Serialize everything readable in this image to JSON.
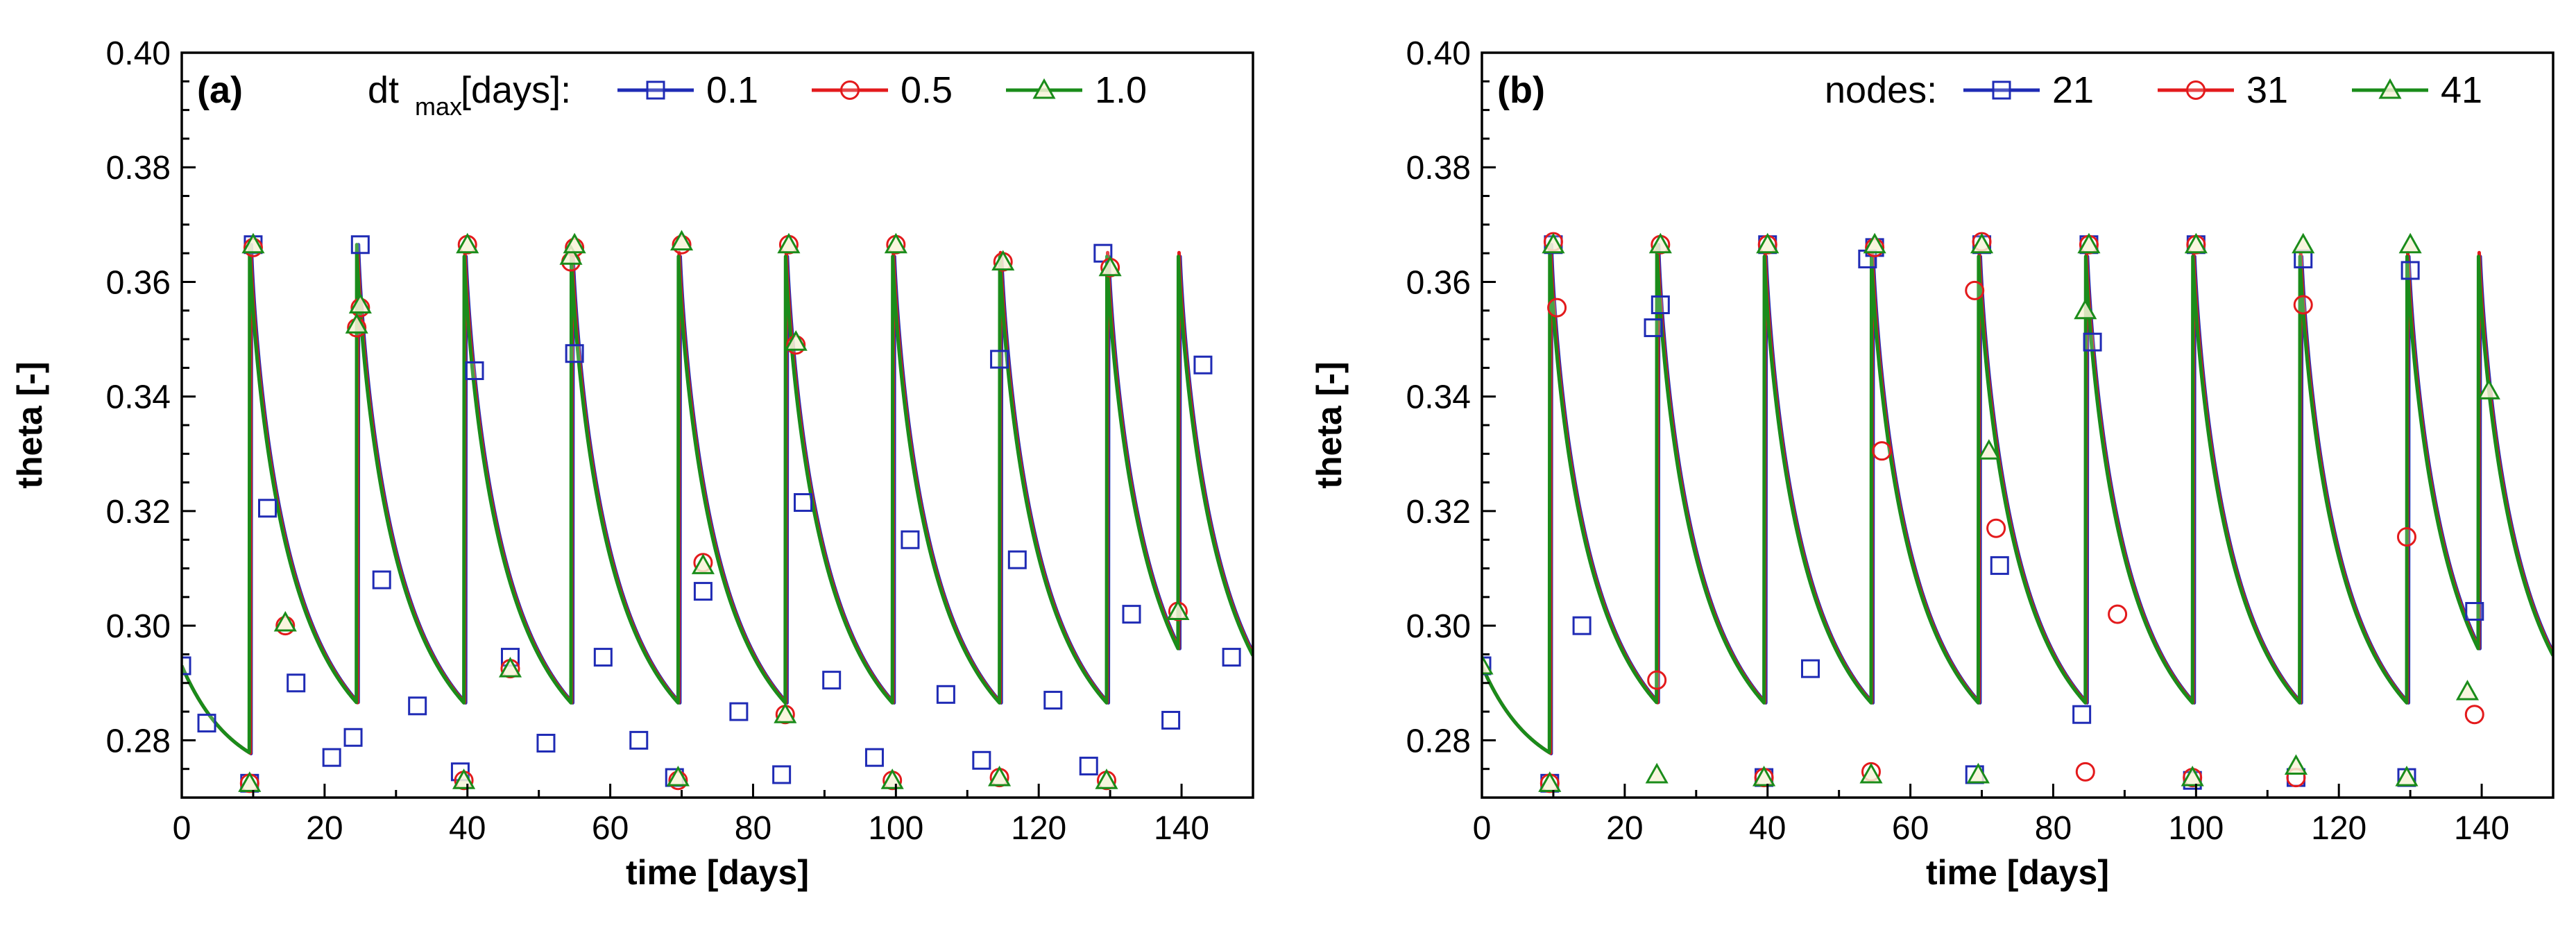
{
  "chart_data": [
    {
      "type": "line",
      "panel_label": "(a)",
      "xlabel": "time [days]",
      "ylabel": "theta [-]",
      "xlim": [
        0,
        150
      ],
      "ylim": [
        0.27,
        0.4
      ],
      "xticks": [
        0,
        20,
        40,
        60,
        80,
        100,
        120,
        140
      ],
      "yticks": [
        0.28,
        0.3,
        0.32,
        0.34,
        0.36,
        0.38,
        0.4
      ],
      "grid": false,
      "legend_placement": "top-right",
      "legend_title_main": "dt",
      "legend_title_sub": "max",
      "legend_title_suffix": " [days]:",
      "recharge_days": [
        9.5,
        24.5,
        39.5,
        54.5,
        69.5,
        84.5,
        99.5,
        114.5,
        129.5,
        139.5
      ],
      "series": [
        {
          "name": "0.1",
          "color": "#1f2bb5",
          "marker": "square",
          "points": [
            [
              0,
              0.293
            ],
            [
              3.5,
              0.283
            ],
            [
              9.5,
              0.2725
            ],
            [
              10,
              0.3665
            ],
            [
              12,
              0.3205
            ],
            [
              16,
              0.29
            ],
            [
              21,
              0.277
            ],
            [
              24,
              0.2805
            ],
            [
              25,
              0.3665
            ],
            [
              28,
              0.308
            ],
            [
              33,
              0.286
            ],
            [
              39,
              0.2745
            ],
            [
              41,
              0.3445
            ],
            [
              46,
              0.2945
            ],
            [
              51,
              0.2795
            ],
            [
              55,
              0.3475
            ],
            [
              59,
              0.2945
            ],
            [
              64,
              0.28
            ],
            [
              69,
              0.2735
            ],
            [
              73,
              0.306
            ],
            [
              78,
              0.285
            ],
            [
              84,
              0.274
            ],
            [
              87,
              0.3215
            ],
            [
              91,
              0.2905
            ],
            [
              97,
              0.277
            ],
            [
              102,
              0.315
            ],
            [
              107,
              0.288
            ],
            [
              112,
              0.2765
            ],
            [
              114.5,
              0.3465
            ],
            [
              117,
              0.3115
            ],
            [
              122,
              0.287
            ],
            [
              127,
              0.2755
            ],
            [
              129,
              0.365
            ],
            [
              133,
              0.302
            ],
            [
              138.5,
              0.2835
            ],
            [
              143,
              0.3455
            ],
            [
              147,
              0.2945
            ]
          ]
        },
        {
          "name": "0.5",
          "color": "#e31a1c",
          "marker": "circle",
          "points": [
            [
              9.5,
              0.2725
            ],
            [
              10,
              0.366
            ],
            [
              14.5,
              0.3
            ],
            [
              24.5,
              0.352
            ],
            [
              25,
              0.3555
            ],
            [
              39.5,
              0.273
            ],
            [
              40,
              0.3665
            ],
            [
              46,
              0.2925
            ],
            [
              54.5,
              0.3635
            ],
            [
              55,
              0.366
            ],
            [
              69.5,
              0.273
            ],
            [
              70,
              0.3665
            ],
            [
              73,
              0.311
            ],
            [
              84.5,
              0.2845
            ],
            [
              85,
              0.3665
            ],
            [
              86,
              0.349
            ],
            [
              99.5,
              0.273
            ],
            [
              100,
              0.3665
            ],
            [
              114.5,
              0.2735
            ],
            [
              115,
              0.3635
            ],
            [
              129.5,
              0.273
            ],
            [
              130,
              0.3625
            ],
            [
              139.5,
              0.3025
            ]
          ]
        },
        {
          "name": "1.0",
          "color": "#1a8c1a",
          "marker": "triangle",
          "points": [
            [
              9.5,
              0.2725
            ],
            [
              10,
              0.3665
            ],
            [
              14.5,
              0.3005
            ],
            [
              24.5,
              0.3525
            ],
            [
              25,
              0.356
            ],
            [
              39.5,
              0.273
            ],
            [
              40,
              0.3665
            ],
            [
              46,
              0.2925
            ],
            [
              54.5,
              0.3645
            ],
            [
              55,
              0.3665
            ],
            [
              69.5,
              0.2735
            ],
            [
              70,
              0.367
            ],
            [
              73,
              0.3105
            ],
            [
              84.5,
              0.2845
            ],
            [
              85,
              0.3665
            ],
            [
              86,
              0.3495
            ],
            [
              99.5,
              0.273
            ],
            [
              100,
              0.3665
            ],
            [
              114.5,
              0.2735
            ],
            [
              115,
              0.3635
            ],
            [
              129.5,
              0.273
            ],
            [
              130,
              0.3625
            ],
            [
              139.5,
              0.3025
            ]
          ]
        }
      ]
    },
    {
      "type": "line",
      "panel_label": "(b)",
      "xlabel": "time [days]",
      "ylabel": "theta [-]",
      "xlim": [
        0,
        150
      ],
      "ylim": [
        0.27,
        0.4
      ],
      "xticks": [
        0,
        20,
        40,
        60,
        80,
        100,
        120,
        140
      ],
      "yticks": [
        0.28,
        0.3,
        0.32,
        0.34,
        0.36,
        0.38,
        0.4
      ],
      "grid": false,
      "legend_placement": "top-right",
      "legend_title_main": "nodes:",
      "recharge_days": [
        9.5,
        24.5,
        39.5,
        54.5,
        69.5,
        84.5,
        99.5,
        114.5,
        129.5,
        139.5
      ],
      "series": [
        {
          "name": "21",
          "color": "#1f2bb5",
          "marker": "square",
          "points": [
            [
              0,
              0.293
            ],
            [
              9.5,
              0.2725
            ],
            [
              10,
              0.3665
            ],
            [
              14,
              0.3
            ],
            [
              24,
              0.352
            ],
            [
              25,
              0.356
            ],
            [
              39.5,
              0.2735
            ],
            [
              40,
              0.3665
            ],
            [
              46,
              0.2925
            ],
            [
              54,
              0.364
            ],
            [
              55,
              0.366
            ],
            [
              69,
              0.274
            ],
            [
              70,
              0.3665
            ],
            [
              72.5,
              0.3105
            ],
            [
              84,
              0.2845
            ],
            [
              85,
              0.3665
            ],
            [
              85.5,
              0.3495
            ],
            [
              99.5,
              0.273
            ],
            [
              100,
              0.3665
            ],
            [
              114,
              0.2735
            ],
            [
              115,
              0.364
            ],
            [
              129.5,
              0.2735
            ],
            [
              130,
              0.362
            ],
            [
              139,
              0.3025
            ]
          ]
        },
        {
          "name": "31",
          "color": "#e31a1c",
          "marker": "circle",
          "points": [
            [
              9.5,
              0.2725
            ],
            [
              10,
              0.367
            ],
            [
              10.5,
              0.3555
            ],
            [
              24.5,
              0.2905
            ],
            [
              25,
              0.3665
            ],
            [
              39.5,
              0.2735
            ],
            [
              40,
              0.3665
            ],
            [
              54.5,
              0.2745
            ],
            [
              55,
              0.366
            ],
            [
              56,
              0.3305
            ],
            [
              69,
              0.3585
            ],
            [
              70,
              0.367
            ],
            [
              72,
              0.317
            ],
            [
              84.5,
              0.2745
            ],
            [
              85,
              0.3665
            ],
            [
              89,
              0.302
            ],
            [
              99.5,
              0.2735
            ],
            [
              100,
              0.3665
            ],
            [
              114,
              0.2735
            ],
            [
              115,
              0.356
            ],
            [
              129.5,
              0.3155
            ],
            [
              139,
              0.2845
            ]
          ]
        },
        {
          "name": "41",
          "color": "#1a8c1a",
          "marker": "triangle",
          "points": [
            [
              0,
              0.293
            ],
            [
              9.5,
              0.2725
            ],
            [
              10,
              0.3665
            ],
            [
              24.5,
              0.274
            ],
            [
              25,
              0.3665
            ],
            [
              39.5,
              0.2735
            ],
            [
              40,
              0.3665
            ],
            [
              54.5,
              0.274
            ],
            [
              55,
              0.3665
            ],
            [
              69.5,
              0.274
            ],
            [
              70,
              0.3665
            ],
            [
              71,
              0.3305
            ],
            [
              84.5,
              0.355
            ],
            [
              85,
              0.3665
            ],
            [
              99.5,
              0.2735
            ],
            [
              100,
              0.3665
            ],
            [
              114,
              0.2755
            ],
            [
              115,
              0.3665
            ],
            [
              129.5,
              0.2735
            ],
            [
              130,
              0.3665
            ],
            [
              138,
              0.2885
            ],
            [
              141,
              0.341
            ]
          ]
        }
      ]
    }
  ]
}
